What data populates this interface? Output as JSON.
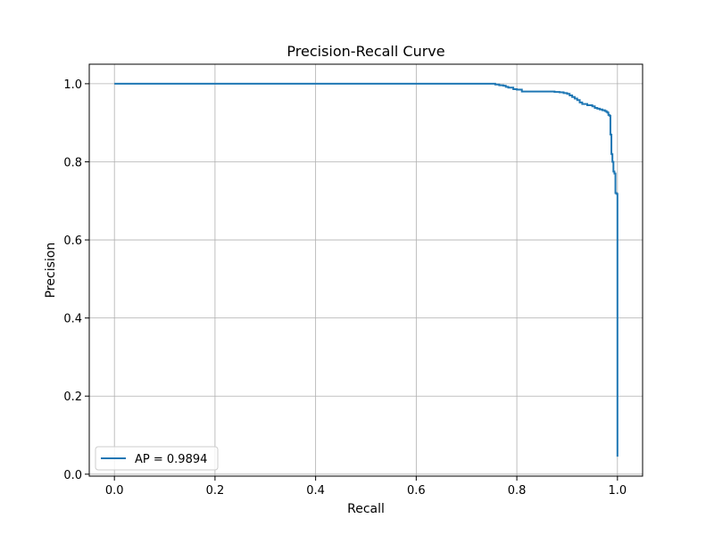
{
  "chart_data": {
    "type": "line",
    "title": "Precision-Recall Curve",
    "xlabel": "Recall",
    "ylabel": "Precision",
    "xlim": [
      -0.05,
      1.05
    ],
    "ylim": [
      -0.005,
      1.05
    ],
    "xticks": [
      0.0,
      0.2,
      0.4,
      0.6,
      0.8,
      1.0
    ],
    "yticks": [
      0.0,
      0.2,
      0.4,
      0.6,
      0.8,
      1.0
    ],
    "xtick_labels": [
      "0.0",
      "0.2",
      "0.4",
      "0.6",
      "0.8",
      "1.0"
    ],
    "ytick_labels": [
      "0.0",
      "0.2",
      "0.4",
      "0.6",
      "0.8",
      "1.0"
    ],
    "grid": true,
    "legend_position": "lower-left",
    "step": true,
    "series": [
      {
        "name": "AP = 0.9894",
        "color": "#1f77b4",
        "x": [
          0.0,
          0.747,
          0.757,
          0.765,
          0.773,
          0.778,
          0.783,
          0.793,
          0.8,
          0.81,
          0.83,
          0.86,
          0.875,
          0.885,
          0.893,
          0.9,
          0.905,
          0.91,
          0.915,
          0.92,
          0.925,
          0.93,
          0.94,
          0.95,
          0.955,
          0.96,
          0.965,
          0.97,
          0.975,
          0.978,
          0.98,
          0.982,
          0.984,
          0.986,
          0.988,
          0.99,
          0.992,
          0.994,
          0.996,
          0.998,
          1.0,
          1.0
        ],
        "y": [
          1.0,
          1.0,
          0.998,
          0.996,
          0.995,
          0.992,
          0.99,
          0.986,
          0.985,
          0.98,
          0.98,
          0.98,
          0.979,
          0.978,
          0.976,
          0.974,
          0.97,
          0.966,
          0.962,
          0.958,
          0.952,
          0.948,
          0.945,
          0.942,
          0.938,
          0.936,
          0.934,
          0.932,
          0.93,
          0.928,
          0.926,
          0.92,
          0.918,
          0.87,
          0.82,
          0.8,
          0.775,
          0.77,
          0.72,
          0.718,
          0.718,
          0.045
        ]
      }
    ]
  }
}
